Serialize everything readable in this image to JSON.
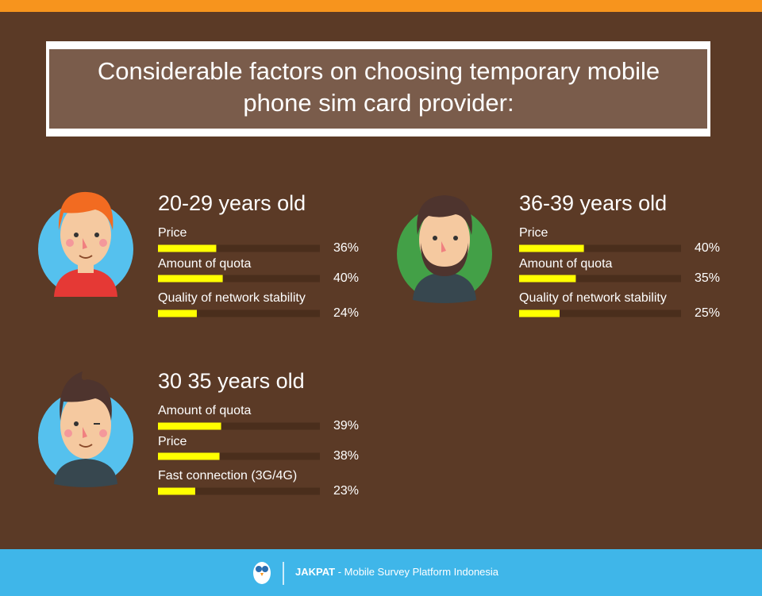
{
  "title": "Considerable factors on choosing temporary mobile phone sim card provider:",
  "chart_data": [
    {
      "type": "bar",
      "title": "20-29 years old",
      "categories": [
        "Price",
        "Amount of quota",
        "Quality of network stability"
      ],
      "values": [
        36,
        40,
        24
      ],
      "value_labels": [
        "36%",
        "40%",
        "24%"
      ],
      "xlim": [
        0,
        100
      ],
      "color": "#ffff00",
      "track_color": "#4a2e1c"
    },
    {
      "type": "bar",
      "title": "36-39 years old",
      "categories": [
        "Price",
        "Amount of quota",
        "Quality of network stability"
      ],
      "values": [
        40,
        35,
        25
      ],
      "value_labels": [
        "40%",
        "35%",
        "25%"
      ],
      "xlim": [
        0,
        100
      ],
      "color": "#ffff00",
      "track_color": "#4a2e1c"
    },
    {
      "type": "bar",
      "title": "30 35 years old",
      "categories": [
        "Amount of quota",
        "Price",
        "Fast connection (3G/4G)"
      ],
      "values": [
        39,
        38,
        23
      ],
      "value_labels": [
        "39%",
        "38%",
        "23%"
      ],
      "xlim": [
        0,
        100
      ],
      "color": "#ffff00",
      "track_color": "#4a2e1c"
    }
  ],
  "footer": {
    "brand": "JAKPAT",
    "tagline": "- Mobile Survey Platform Indonesia"
  }
}
